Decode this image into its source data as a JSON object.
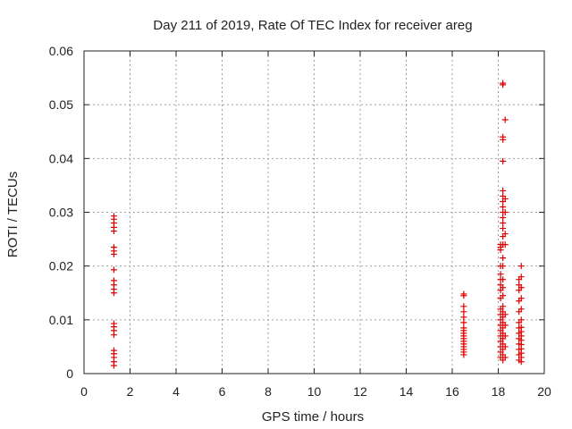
{
  "chart_data": {
    "type": "scatter",
    "title": "Day 211 of 2019, Rate Of TEC Index for receiver areg",
    "xlabel": "GPS time / hours",
    "ylabel": "ROTI / TECUs",
    "xlim": [
      0,
      20
    ],
    "ylim": [
      0,
      0.06
    ],
    "x_ticks": [
      0,
      2,
      4,
      6,
      8,
      10,
      12,
      14,
      16,
      18,
      20
    ],
    "x_tick_labels": [
      "0",
      "2",
      "4",
      "6",
      "8",
      "10",
      "12",
      "14",
      "16",
      "18",
      "20"
    ],
    "y_ticks": [
      0,
      0.01,
      0.02,
      0.03,
      0.04,
      0.05,
      0.06
    ],
    "y_tick_labels": [
      "0",
      "0.01",
      "0.02",
      "0.03",
      "0.04",
      "0.05",
      "0.06"
    ],
    "grid": true,
    "marker": "plus",
    "marker_color": "#dd0000",
    "points": [
      {
        "x": 1.3,
        "y": 0.0015
      },
      {
        "x": 1.3,
        "y": 0.0022
      },
      {
        "x": 1.3,
        "y": 0.003
      },
      {
        "x": 1.3,
        "y": 0.0037
      },
      {
        "x": 1.3,
        "y": 0.0043
      },
      {
        "x": 1.3,
        "y": 0.0072
      },
      {
        "x": 1.3,
        "y": 0.008
      },
      {
        "x": 1.3,
        "y": 0.0087
      },
      {
        "x": 1.3,
        "y": 0.0093
      },
      {
        "x": 1.3,
        "y": 0.015
      },
      {
        "x": 1.3,
        "y": 0.0157
      },
      {
        "x": 1.3,
        "y": 0.0165
      },
      {
        "x": 1.3,
        "y": 0.0173
      },
      {
        "x": 1.3,
        "y": 0.0193
      },
      {
        "x": 1.3,
        "y": 0.0222
      },
      {
        "x": 1.3,
        "y": 0.0228
      },
      {
        "x": 1.3,
        "y": 0.0235
      },
      {
        "x": 1.3,
        "y": 0.0265
      },
      {
        "x": 1.3,
        "y": 0.0272
      },
      {
        "x": 1.3,
        "y": 0.028
      },
      {
        "x": 1.3,
        "y": 0.0287
      },
      {
        "x": 1.3,
        "y": 0.0293
      },
      {
        "x": 16.5,
        "y": 0.0035
      },
      {
        "x": 16.5,
        "y": 0.004
      },
      {
        "x": 16.5,
        "y": 0.0045
      },
      {
        "x": 16.5,
        "y": 0.005
      },
      {
        "x": 16.5,
        "y": 0.0055
      },
      {
        "x": 16.5,
        "y": 0.006
      },
      {
        "x": 16.5,
        "y": 0.0065
      },
      {
        "x": 16.5,
        "y": 0.007
      },
      {
        "x": 16.5,
        "y": 0.0075
      },
      {
        "x": 16.5,
        "y": 0.008
      },
      {
        "x": 16.5,
        "y": 0.0085
      },
      {
        "x": 16.5,
        "y": 0.0095
      },
      {
        "x": 16.5,
        "y": 0.0105
      },
      {
        "x": 16.5,
        "y": 0.0115
      },
      {
        "x": 16.5,
        "y": 0.0125
      },
      {
        "x": 16.5,
        "y": 0.0145
      },
      {
        "x": 16.5,
        "y": 0.0148
      },
      {
        "x": 18.1,
        "y": 0.003
      },
      {
        "x": 18.1,
        "y": 0.004
      },
      {
        "x": 18.1,
        "y": 0.005
      },
      {
        "x": 18.1,
        "y": 0.006
      },
      {
        "x": 18.1,
        "y": 0.007
      },
      {
        "x": 18.1,
        "y": 0.008
      },
      {
        "x": 18.1,
        "y": 0.009
      },
      {
        "x": 18.1,
        "y": 0.01
      },
      {
        "x": 18.1,
        "y": 0.011
      },
      {
        "x": 18.1,
        "y": 0.012
      },
      {
        "x": 18.1,
        "y": 0.014
      },
      {
        "x": 18.1,
        "y": 0.0155
      },
      {
        "x": 18.1,
        "y": 0.0165
      },
      {
        "x": 18.1,
        "y": 0.0175
      },
      {
        "x": 18.1,
        "y": 0.0185
      },
      {
        "x": 18.1,
        "y": 0.02
      },
      {
        "x": 18.1,
        "y": 0.023
      },
      {
        "x": 18.1,
        "y": 0.0235
      },
      {
        "x": 18.1,
        "y": 0.024
      },
      {
        "x": 18.2,
        "y": 0.0025
      },
      {
        "x": 18.2,
        "y": 0.0035
      },
      {
        "x": 18.2,
        "y": 0.0045
      },
      {
        "x": 18.2,
        "y": 0.0055
      },
      {
        "x": 18.2,
        "y": 0.0065
      },
      {
        "x": 18.2,
        "y": 0.0075
      },
      {
        "x": 18.2,
        "y": 0.0085
      },
      {
        "x": 18.2,
        "y": 0.0095
      },
      {
        "x": 18.2,
        "y": 0.0105
      },
      {
        "x": 18.2,
        "y": 0.0115
      },
      {
        "x": 18.2,
        "y": 0.0125
      },
      {
        "x": 18.2,
        "y": 0.0145
      },
      {
        "x": 18.2,
        "y": 0.016
      },
      {
        "x": 18.2,
        "y": 0.0175
      },
      {
        "x": 18.2,
        "y": 0.02
      },
      {
        "x": 18.2,
        "y": 0.0215
      },
      {
        "x": 18.2,
        "y": 0.024
      },
      {
        "x": 18.2,
        "y": 0.0255
      },
      {
        "x": 18.2,
        "y": 0.027
      },
      {
        "x": 18.2,
        "y": 0.028
      },
      {
        "x": 18.2,
        "y": 0.029
      },
      {
        "x": 18.2,
        "y": 0.03
      },
      {
        "x": 18.2,
        "y": 0.031
      },
      {
        "x": 18.2,
        "y": 0.032
      },
      {
        "x": 18.2,
        "y": 0.033
      },
      {
        "x": 18.2,
        "y": 0.034
      },
      {
        "x": 18.2,
        "y": 0.0395
      },
      {
        "x": 18.2,
        "y": 0.0435
      },
      {
        "x": 18.2,
        "y": 0.044
      },
      {
        "x": 18.2,
        "y": 0.0537
      },
      {
        "x": 18.2,
        "y": 0.054
      },
      {
        "x": 18.3,
        "y": 0.003
      },
      {
        "x": 18.3,
        "y": 0.005
      },
      {
        "x": 18.3,
        "y": 0.007
      },
      {
        "x": 18.3,
        "y": 0.009
      },
      {
        "x": 18.3,
        "y": 0.011
      },
      {
        "x": 18.3,
        "y": 0.024
      },
      {
        "x": 18.3,
        "y": 0.026
      },
      {
        "x": 18.3,
        "y": 0.03
      },
      {
        "x": 18.3,
        "y": 0.0325
      },
      {
        "x": 18.3,
        "y": 0.0472
      },
      {
        "x": 18.9,
        "y": 0.0025
      },
      {
        "x": 18.9,
        "y": 0.0035
      },
      {
        "x": 18.9,
        "y": 0.0045
      },
      {
        "x": 18.9,
        "y": 0.0055
      },
      {
        "x": 18.9,
        "y": 0.0065
      },
      {
        "x": 18.9,
        "y": 0.0075
      },
      {
        "x": 18.9,
        "y": 0.0085
      },
      {
        "x": 18.9,
        "y": 0.0095
      },
      {
        "x": 18.9,
        "y": 0.0115
      },
      {
        "x": 18.9,
        "y": 0.0135
      },
      {
        "x": 18.9,
        "y": 0.0155
      },
      {
        "x": 18.9,
        "y": 0.0165
      },
      {
        "x": 18.9,
        "y": 0.0175
      },
      {
        "x": 19.0,
        "y": 0.0022
      },
      {
        "x": 19.0,
        "y": 0.003
      },
      {
        "x": 19.0,
        "y": 0.0038
      },
      {
        "x": 19.0,
        "y": 0.0046
      },
      {
        "x": 19.0,
        "y": 0.0054
      },
      {
        "x": 19.0,
        "y": 0.0062
      },
      {
        "x": 19.0,
        "y": 0.007
      },
      {
        "x": 19.0,
        "y": 0.0078
      },
      {
        "x": 19.0,
        "y": 0.0086
      },
      {
        "x": 19.0,
        "y": 0.01
      },
      {
        "x": 19.0,
        "y": 0.012
      },
      {
        "x": 19.0,
        "y": 0.014
      },
      {
        "x": 19.0,
        "y": 0.016
      },
      {
        "x": 19.0,
        "y": 0.018
      },
      {
        "x": 19.0,
        "y": 0.02
      }
    ]
  }
}
